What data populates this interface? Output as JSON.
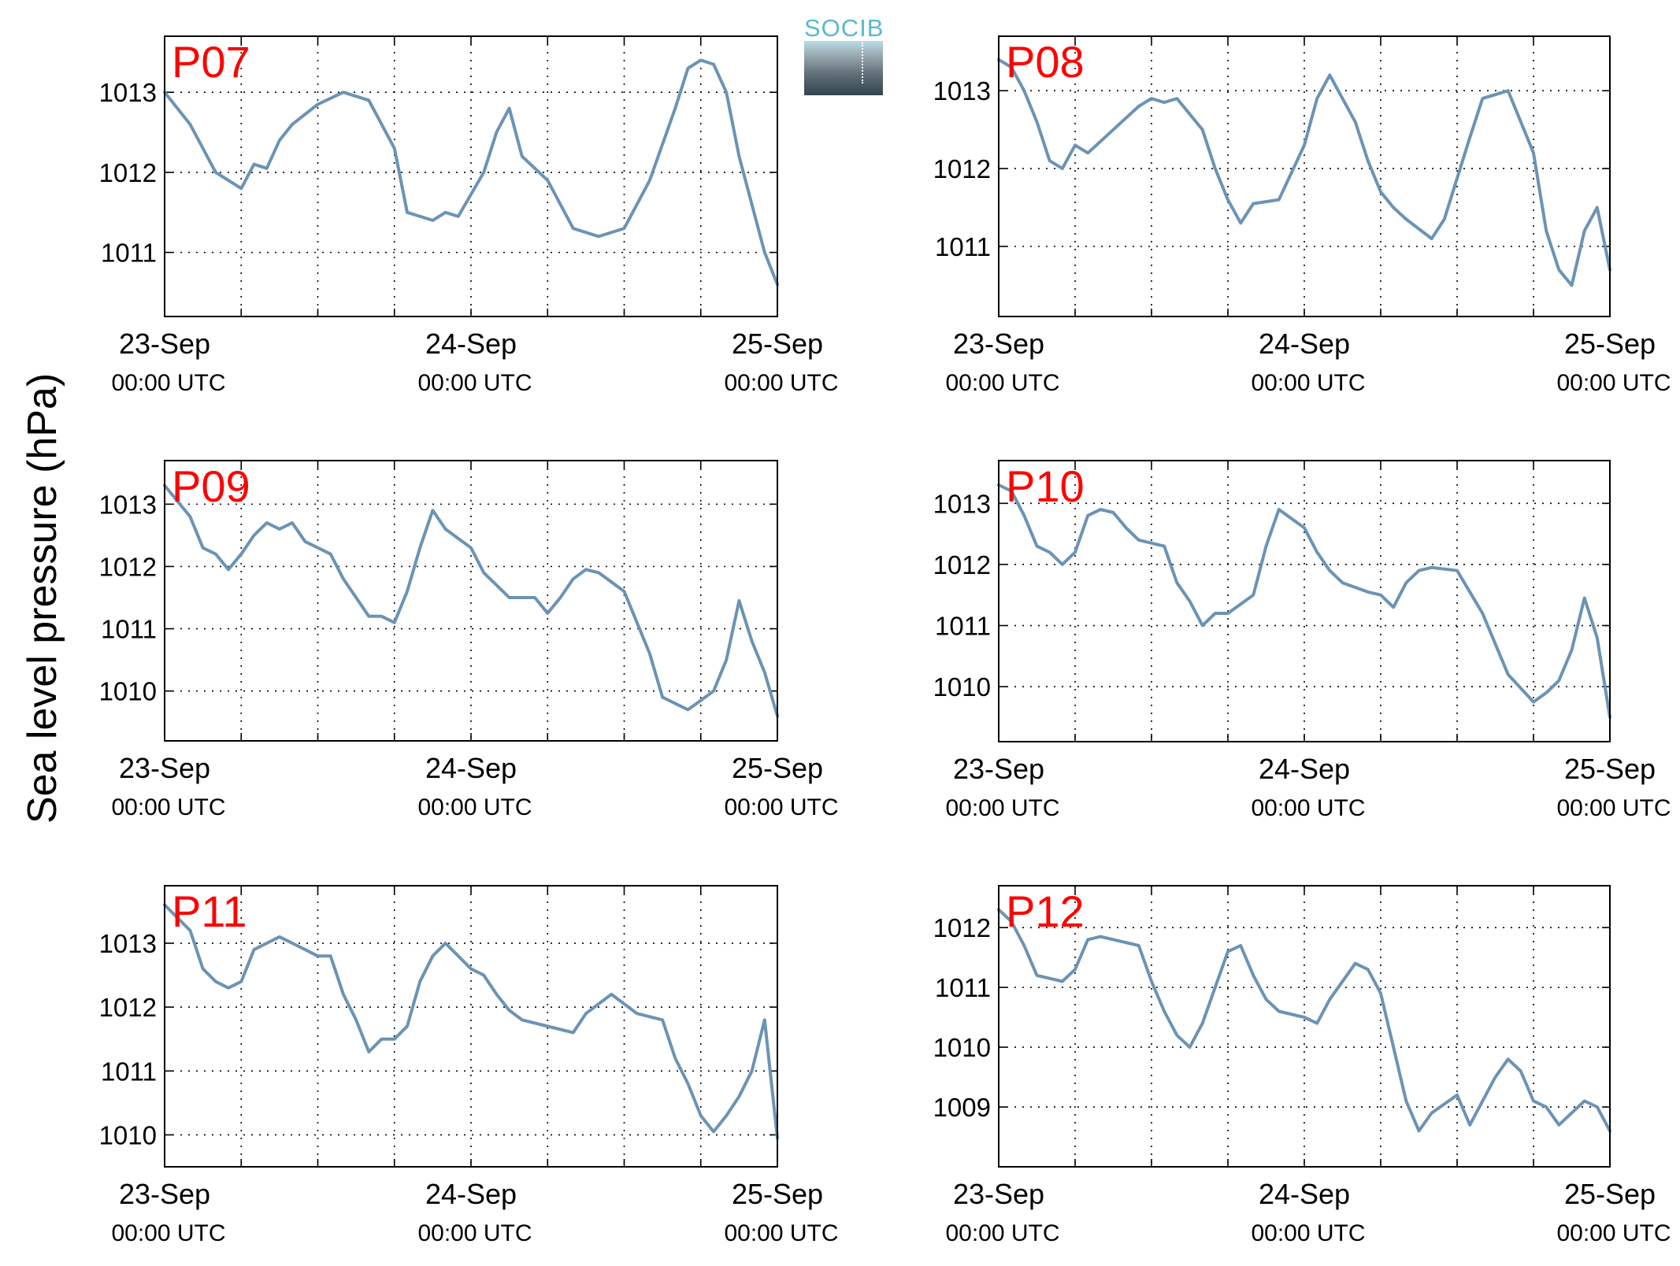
{
  "figure": {
    "ylabel": "Sea level pressure (hPa)",
    "logo_text": "SOCIB",
    "colors": {
      "line": "#6b93b5",
      "panel_label": "#ff0000",
      "axes": "#000000",
      "grid": "#000000"
    }
  },
  "chart_data": [
    {
      "type": "line",
      "title": "P07",
      "x_ticks": [
        {
          "date": "23-Sep",
          "time": "00:00 UTC"
        },
        {
          "date": "24-Sep",
          "time": "00:00 UTC"
        },
        {
          "date": "25-Sep",
          "time": "00:00 UTC"
        }
      ],
      "xlim": [
        "2023-09-23T00:00",
        "2023-09-25T00:00"
      ],
      "yticks": [
        1011,
        1012,
        1013
      ],
      "ylim": [
        1010.2,
        1013.7
      ],
      "grid": true,
      "series": [
        {
          "x": [
            "2023-09-23T00:00",
            "2023-09-23T02:00",
            "2023-09-23T04:00",
            "2023-09-23T06:00",
            "2023-09-23T07:00",
            "2023-09-23T08:00",
            "2023-09-23T09:00",
            "2023-09-23T10:00",
            "2023-09-23T12:00",
            "2023-09-23T14:00",
            "2023-09-23T16:00",
            "2023-09-23T18:00",
            "2023-09-23T19:00",
            "2023-09-23T21:00",
            "2023-09-23T22:00",
            "2023-09-23T23:00",
            "2023-09-24T01:00",
            "2023-09-24T02:00",
            "2023-09-24T03:00",
            "2023-09-24T04:00",
            "2023-09-24T06:00",
            "2023-09-24T08:00",
            "2023-09-24T10:00",
            "2023-09-24T12:00",
            "2023-09-24T14:00",
            "2023-09-24T16:00",
            "2023-09-24T17:00",
            "2023-09-24T18:00",
            "2023-09-24T19:00",
            "2023-09-24T20:00",
            "2023-09-24T21:00",
            "2023-09-24T22:00",
            "2023-09-24T23:00",
            "2023-09-25T00:00"
          ],
          "y": [
            1013.0,
            1012.6,
            1012.0,
            1011.8,
            1012.1,
            1012.05,
            1012.4,
            1012.6,
            1012.85,
            1013.0,
            1012.9,
            1012.3,
            1011.5,
            1011.4,
            1011.5,
            1011.45,
            1012.0,
            1012.5,
            1012.8,
            1012.2,
            1011.9,
            1011.3,
            1011.2,
            1011.3,
            1011.9,
            1012.8,
            1013.3,
            1013.4,
            1013.35,
            1013.0,
            1012.2,
            1011.6,
            1011.0,
            1010.6
          ]
        }
      ]
    },
    {
      "type": "line",
      "title": "P08",
      "x_ticks": [
        {
          "date": "23-Sep",
          "time": "00:00 UTC"
        },
        {
          "date": "24-Sep",
          "time": "00:00 UTC"
        },
        {
          "date": "25-Sep",
          "time": "00:00 UTC"
        }
      ],
      "xlim": [
        "2023-09-23T00:00",
        "2023-09-25T00:00"
      ],
      "yticks": [
        1011,
        1012,
        1013
      ],
      "ylim": [
        1010.1,
        1013.7
      ],
      "grid": true,
      "series": [
        {
          "x": [
            "2023-09-23T00:00",
            "2023-09-23T01:00",
            "2023-09-23T02:00",
            "2023-09-23T03:00",
            "2023-09-23T04:00",
            "2023-09-23T05:00",
            "2023-09-23T06:00",
            "2023-09-23T07:00",
            "2023-09-23T09:00",
            "2023-09-23T11:00",
            "2023-09-23T12:00",
            "2023-09-23T13:00",
            "2023-09-23T14:00",
            "2023-09-23T16:00",
            "2023-09-23T17:00",
            "2023-09-23T18:00",
            "2023-09-23T19:00",
            "2023-09-23T20:00",
            "2023-09-23T22:00",
            "2023-09-24T00:00",
            "2023-09-24T01:00",
            "2023-09-24T02:00",
            "2023-09-24T04:00",
            "2023-09-24T05:00",
            "2023-09-24T06:00",
            "2023-09-24T07:00",
            "2023-09-24T08:00",
            "2023-09-24T10:00",
            "2023-09-24T11:00",
            "2023-09-24T13:00",
            "2023-09-24T14:00",
            "2023-09-24T16:00",
            "2023-09-24T18:00",
            "2023-09-24T19:00",
            "2023-09-24T20:00",
            "2023-09-24T21:00",
            "2023-09-24T22:00",
            "2023-09-24T23:00",
            "2023-09-25T00:00"
          ],
          "y": [
            1013.4,
            1013.3,
            1013.0,
            1012.6,
            1012.1,
            1012.0,
            1012.3,
            1012.2,
            1012.5,
            1012.8,
            1012.9,
            1012.85,
            1012.9,
            1012.5,
            1012.0,
            1011.6,
            1011.3,
            1011.55,
            1011.6,
            1012.3,
            1012.9,
            1013.2,
            1012.6,
            1012.1,
            1011.7,
            1011.5,
            1011.35,
            1011.1,
            1011.35,
            1012.4,
            1012.9,
            1013.0,
            1012.2,
            1011.2,
            1010.7,
            1010.5,
            1011.2,
            1011.5,
            1010.7
          ]
        }
      ]
    },
    {
      "type": "line",
      "title": "P09",
      "x_ticks": [
        {
          "date": "23-Sep",
          "time": "00:00 UTC"
        },
        {
          "date": "24-Sep",
          "time": "00:00 UTC"
        },
        {
          "date": "25-Sep",
          "time": "00:00 UTC"
        }
      ],
      "xlim": [
        "2023-09-23T00:00",
        "2023-09-25T00:00"
      ],
      "yticks": [
        1010,
        1011,
        1012,
        1013
      ],
      "ylim": [
        1009.2,
        1013.7
      ],
      "grid": true,
      "series": [
        {
          "x": [
            "2023-09-23T00:00",
            "2023-09-23T02:00",
            "2023-09-23T03:00",
            "2023-09-23T04:00",
            "2023-09-23T05:00",
            "2023-09-23T06:00",
            "2023-09-23T07:00",
            "2023-09-23T08:00",
            "2023-09-23T09:00",
            "2023-09-23T10:00",
            "2023-09-23T11:00",
            "2023-09-23T13:00",
            "2023-09-23T14:00",
            "2023-09-23T15:00",
            "2023-09-23T16:00",
            "2023-09-23T17:00",
            "2023-09-23T18:00",
            "2023-09-23T19:00",
            "2023-09-23T20:00",
            "2023-09-23T21:00",
            "2023-09-23T22:00",
            "2023-09-24T00:00",
            "2023-09-24T01:00",
            "2023-09-24T02:00",
            "2023-09-24T03:00",
            "2023-09-24T05:00",
            "2023-09-24T06:00",
            "2023-09-24T07:00",
            "2023-09-24T08:00",
            "2023-09-24T09:00",
            "2023-09-24T10:00",
            "2023-09-24T12:00",
            "2023-09-24T14:00",
            "2023-09-24T15:00",
            "2023-09-24T17:00",
            "2023-09-24T18:00",
            "2023-09-24T19:00",
            "2023-09-24T20:00",
            "2023-09-24T21:00",
            "2023-09-24T22:00",
            "2023-09-24T23:00",
            "2023-09-25T00:00"
          ],
          "y": [
            1013.3,
            1012.8,
            1012.3,
            1012.2,
            1011.95,
            1012.2,
            1012.5,
            1012.7,
            1012.6,
            1012.7,
            1012.4,
            1012.2,
            1011.8,
            1011.5,
            1011.2,
            1011.2,
            1011.1,
            1011.6,
            1012.3,
            1012.9,
            1012.6,
            1012.3,
            1011.9,
            1011.7,
            1011.5,
            1011.5,
            1011.25,
            1011.5,
            1011.8,
            1011.95,
            1011.9,
            1011.6,
            1010.6,
            1009.9,
            1009.7,
            1009.85,
            1010.0,
            1010.5,
            1011.45,
            1010.8,
            1010.3,
            1009.6
          ]
        }
      ]
    },
    {
      "type": "line",
      "title": "P10",
      "x_ticks": [
        {
          "date": "23-Sep",
          "time": "00:00 UTC"
        },
        {
          "date": "24-Sep",
          "time": "00:00 UTC"
        },
        {
          "date": "25-Sep",
          "time": "00:00 UTC"
        }
      ],
      "xlim": [
        "2023-09-23T00:00",
        "2023-09-25T00:00"
      ],
      "yticks": [
        1010,
        1011,
        1012,
        1013
      ],
      "ylim": [
        1009.1,
        1013.7
      ],
      "grid": true,
      "series": [
        {
          "x": [
            "2023-09-23T00:00",
            "2023-09-23T01:00",
            "2023-09-23T02:00",
            "2023-09-23T03:00",
            "2023-09-23T04:00",
            "2023-09-23T05:00",
            "2023-09-23T06:00",
            "2023-09-23T07:00",
            "2023-09-23T08:00",
            "2023-09-23T09:00",
            "2023-09-23T10:00",
            "2023-09-23T11:00",
            "2023-09-23T13:00",
            "2023-09-23T14:00",
            "2023-09-23T15:00",
            "2023-09-23T16:00",
            "2023-09-23T17:00",
            "2023-09-23T18:00",
            "2023-09-23T20:00",
            "2023-09-23T21:00",
            "2023-09-23T22:00",
            "2023-09-24T00:00",
            "2023-09-24T01:00",
            "2023-09-24T02:00",
            "2023-09-24T03:00",
            "2023-09-24T05:00",
            "2023-09-24T06:00",
            "2023-09-24T07:00",
            "2023-09-24T08:00",
            "2023-09-24T09:00",
            "2023-09-24T10:00",
            "2023-09-24T12:00",
            "2023-09-24T14:00",
            "2023-09-24T16:00",
            "2023-09-24T18:00",
            "2023-09-24T19:00",
            "2023-09-24T20:00",
            "2023-09-24T21:00",
            "2023-09-24T22:00",
            "2023-09-24T23:00",
            "2023-09-25T00:00"
          ],
          "y": [
            1013.3,
            1013.2,
            1012.8,
            1012.3,
            1012.2,
            1012.0,
            1012.2,
            1012.8,
            1012.9,
            1012.85,
            1012.6,
            1012.4,
            1012.3,
            1011.7,
            1011.4,
            1011.0,
            1011.2,
            1011.2,
            1011.5,
            1012.3,
            1012.9,
            1012.6,
            1012.2,
            1011.9,
            1011.7,
            1011.55,
            1011.5,
            1011.3,
            1011.7,
            1011.9,
            1011.95,
            1011.9,
            1011.2,
            1010.2,
            1009.75,
            1009.9,
            1010.1,
            1010.6,
            1011.45,
            1010.8,
            1009.5
          ]
        }
      ]
    },
    {
      "type": "line",
      "title": "P11",
      "x_ticks": [
        {
          "date": "23-Sep",
          "time": "00:00 UTC"
        },
        {
          "date": "24-Sep",
          "time": "00:00 UTC"
        },
        {
          "date": "25-Sep",
          "time": "00:00 UTC"
        }
      ],
      "xlim": [
        "2023-09-23T00:00",
        "2023-09-25T00:00"
      ],
      "yticks": [
        1010,
        1011,
        1012,
        1013
      ],
      "ylim": [
        1009.5,
        1013.9
      ],
      "grid": true,
      "series": [
        {
          "x": [
            "2023-09-23T00:00",
            "2023-09-23T01:00",
            "2023-09-23T02:00",
            "2023-09-23T03:00",
            "2023-09-23T04:00",
            "2023-09-23T05:00",
            "2023-09-23T06:00",
            "2023-09-23T07:00",
            "2023-09-23T08:00",
            "2023-09-23T09:00",
            "2023-09-23T11:00",
            "2023-09-23T12:00",
            "2023-09-23T13:00",
            "2023-09-23T14:00",
            "2023-09-23T15:00",
            "2023-09-23T16:00",
            "2023-09-23T17:00",
            "2023-09-23T18:00",
            "2023-09-23T19:00",
            "2023-09-23T20:00",
            "2023-09-23T21:00",
            "2023-09-23T22:00",
            "2023-09-24T00:00",
            "2023-09-24T01:00",
            "2023-09-24T02:00",
            "2023-09-24T03:00",
            "2023-09-24T04:00",
            "2023-09-24T06:00",
            "2023-09-24T08:00",
            "2023-09-24T09:00",
            "2023-09-24T11:00",
            "2023-09-24T13:00",
            "2023-09-24T15:00",
            "2023-09-24T16:00",
            "2023-09-24T17:00",
            "2023-09-24T18:00",
            "2023-09-24T19:00",
            "2023-09-24T20:00",
            "2023-09-24T21:00",
            "2023-09-24T22:00",
            "2023-09-24T23:00",
            "2023-09-25T00:00"
          ],
          "y": [
            1013.6,
            1013.4,
            1013.2,
            1012.6,
            1012.4,
            1012.3,
            1012.4,
            1012.9,
            1013.0,
            1013.1,
            1012.9,
            1012.8,
            1012.8,
            1012.2,
            1011.8,
            1011.3,
            1011.5,
            1011.5,
            1011.7,
            1012.4,
            1012.8,
            1013.0,
            1012.6,
            1012.5,
            1012.2,
            1011.95,
            1011.8,
            1011.7,
            1011.6,
            1011.9,
            1012.2,
            1011.9,
            1011.8,
            1011.2,
            1010.8,
            1010.3,
            1010.05,
            1010.3,
            1010.6,
            1011.0,
            1011.8,
            1009.95
          ]
        }
      ]
    },
    {
      "type": "line",
      "title": "P12",
      "x_ticks": [
        {
          "date": "23-Sep",
          "time": "00:00 UTC"
        },
        {
          "date": "24-Sep",
          "time": "00:00 UTC"
        },
        {
          "date": "25-Sep",
          "time": "00:00 UTC"
        }
      ],
      "xlim": [
        "2023-09-23T00:00",
        "2023-09-25T00:00"
      ],
      "yticks": [
        1009,
        1010,
        1011,
        1012
      ],
      "ylim": [
        1008.0,
        1012.7
      ],
      "grid": true,
      "series": [
        {
          "x": [
            "2023-09-23T00:00",
            "2023-09-23T01:00",
            "2023-09-23T02:00",
            "2023-09-23T03:00",
            "2023-09-23T04:00",
            "2023-09-23T05:00",
            "2023-09-23T06:00",
            "2023-09-23T07:00",
            "2023-09-23T08:00",
            "2023-09-23T09:00",
            "2023-09-23T10:00",
            "2023-09-23T11:00",
            "2023-09-23T12:00",
            "2023-09-23T13:00",
            "2023-09-23T14:00",
            "2023-09-23T15:00",
            "2023-09-23T16:00",
            "2023-09-23T17:00",
            "2023-09-23T18:00",
            "2023-09-23T19:00",
            "2023-09-23T20:00",
            "2023-09-23T21:00",
            "2023-09-23T22:00",
            "2023-09-24T00:00",
            "2023-09-24T01:00",
            "2023-09-24T02:00",
            "2023-09-24T04:00",
            "2023-09-24T05:00",
            "2023-09-24T06:00",
            "2023-09-24T07:00",
            "2023-09-24T08:00",
            "2023-09-24T09:00",
            "2023-09-24T10:00",
            "2023-09-24T12:00",
            "2023-09-24T13:00",
            "2023-09-24T14:00",
            "2023-09-24T15:00",
            "2023-09-24T16:00",
            "2023-09-24T17:00",
            "2023-09-24T18:00",
            "2023-09-24T19:00",
            "2023-09-24T20:00",
            "2023-09-24T21:00",
            "2023-09-24T22:00",
            "2023-09-24T23:00",
            "2023-09-25T00:00"
          ],
          "y": [
            1012.3,
            1012.1,
            1011.7,
            1011.2,
            1011.15,
            1011.1,
            1011.3,
            1011.8,
            1011.85,
            1011.8,
            1011.75,
            1011.7,
            1011.1,
            1010.6,
            1010.2,
            1010.0,
            1010.4,
            1011.0,
            1011.6,
            1011.7,
            1011.2,
            1010.8,
            1010.6,
            1010.5,
            1010.4,
            1010.8,
            1011.4,
            1011.3,
            1010.9,
            1010.0,
            1009.1,
            1008.6,
            1008.9,
            1009.2,
            1008.7,
            1009.1,
            1009.5,
            1009.8,
            1009.6,
            1009.1,
            1009.0,
            1008.7,
            1008.9,
            1009.1,
            1009.0,
            1008.6
          ]
        }
      ]
    }
  ]
}
